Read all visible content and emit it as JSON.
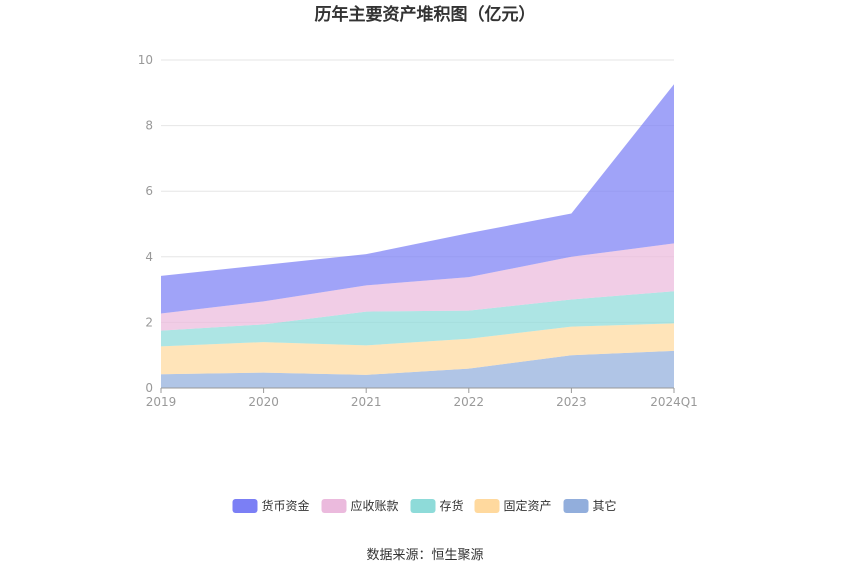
{
  "chart_data": {
    "type": "area",
    "stacked": true,
    "title": "历年主要资产堆积图（亿元）",
    "categories": [
      "2019",
      "2020",
      "2021",
      "2022",
      "2023",
      "2024Q1"
    ],
    "ylim": [
      0,
      10
    ],
    "yticks": [
      "0",
      "2",
      "4",
      "6",
      "8",
      "10"
    ],
    "grid": true,
    "legend_position": "bottom",
    "series": [
      {
        "name": "其它",
        "color": "#92aedc",
        "values": [
          0.42,
          0.47,
          0.4,
          0.59,
          1.0,
          1.13
        ]
      },
      {
        "name": "固定资产",
        "color": "#ffd99e",
        "values": [
          0.85,
          0.93,
          0.9,
          0.91,
          0.87,
          0.84
        ]
      },
      {
        "name": "存货",
        "color": "#8edbd9",
        "values": [
          0.48,
          0.54,
          1.03,
          0.86,
          0.83,
          0.98
        ]
      },
      {
        "name": "应收账款",
        "color": "#ebbadd",
        "values": [
          0.52,
          0.7,
          0.8,
          1.02,
          1.3,
          1.46
        ]
      },
      {
        "name": "货币资金",
        "color": "#7b7ff5",
        "values": [
          1.15,
          1.11,
          0.95,
          1.34,
          1.32,
          4.85
        ]
      }
    ],
    "legend_order": [
      "货币资金",
      "应收账款",
      "存货",
      "固定资产",
      "其它"
    ],
    "source": "数据来源：恒生聚源"
  }
}
